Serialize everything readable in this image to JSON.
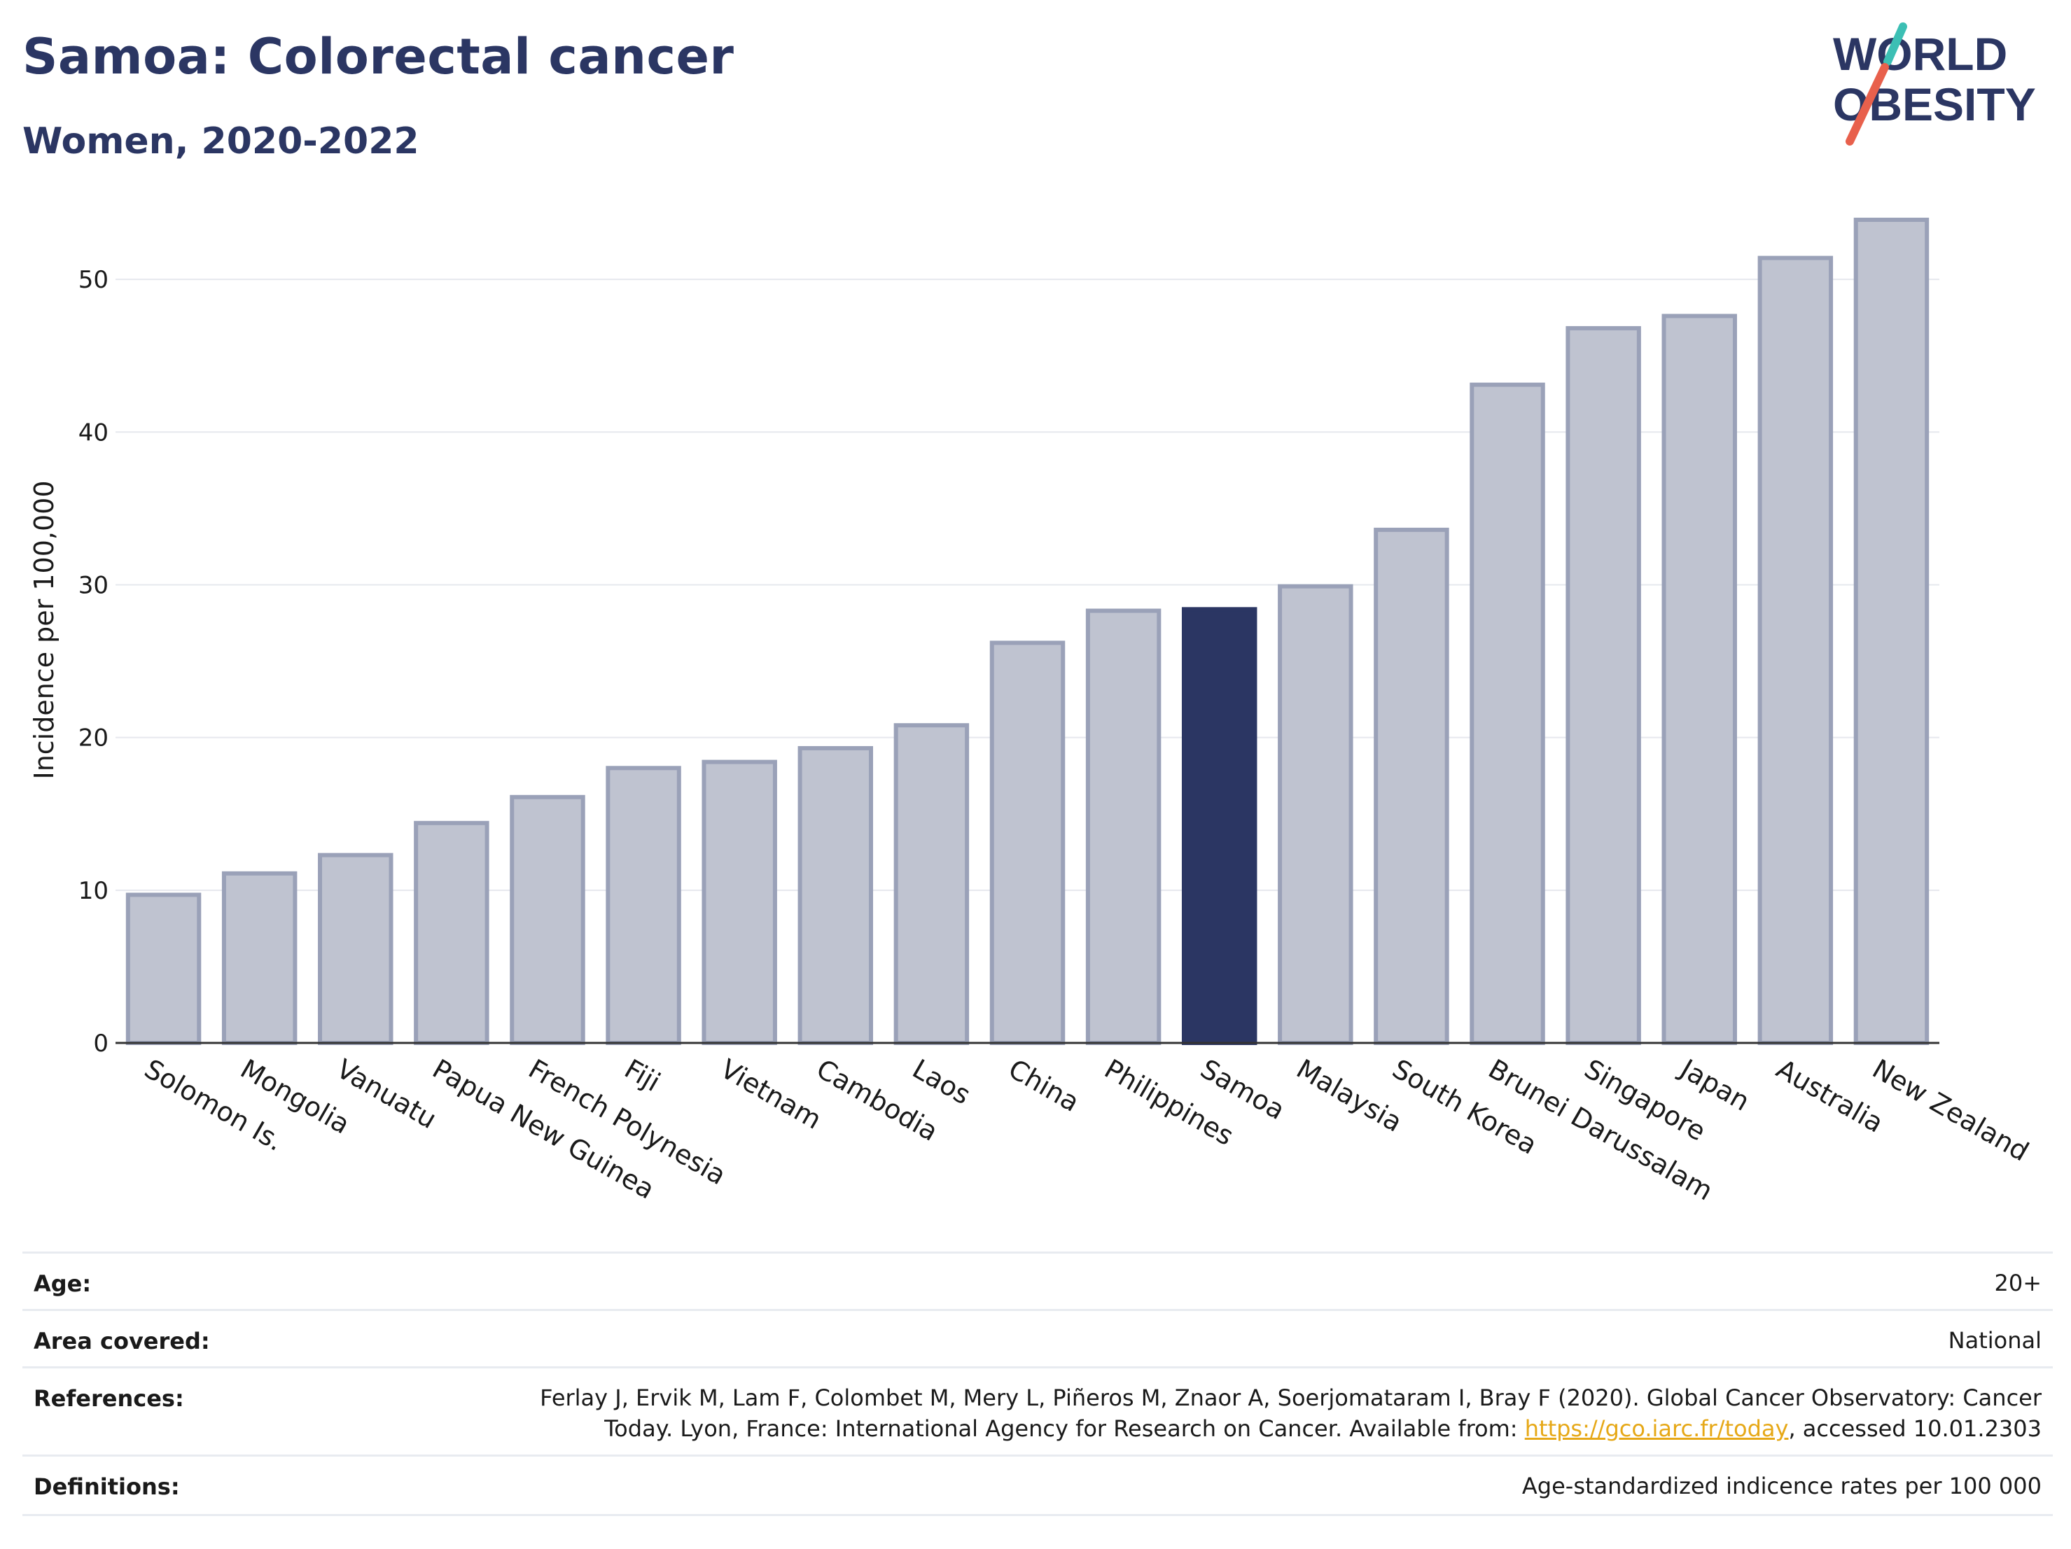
{
  "header": {
    "title": "Samoa: Colorectal cancer",
    "subtitle": "Women, 2020-2022"
  },
  "logo": {
    "line1": "WORLD",
    "line2": "OBESITY",
    "accent_teal": "#3cbfb4",
    "accent_red": "#e8604c"
  },
  "colors": {
    "bar": "#bfc3d0",
    "bar_stroke": "#9aa1b8",
    "highlight": "#2b3663",
    "grid": "#e6e8ee",
    "axis": "#333333"
  },
  "chart_data": {
    "type": "bar",
    "categories": [
      "Solomon Is.",
      "Mongolia",
      "Vanuatu",
      "Papua New Guinea",
      "French Polynesia",
      "Fiji",
      "Vietnam",
      "Cambodia",
      "Laos",
      "China",
      "Philippines",
      "Samoa",
      "Malaysia",
      "South Korea",
      "Brunei Darussalam",
      "Singapore",
      "Japan",
      "Australia",
      "New Zealand"
    ],
    "values": [
      9.7,
      11.1,
      12.3,
      14.4,
      16.1,
      18.0,
      18.4,
      19.3,
      20.8,
      26.2,
      28.3,
      28.4,
      29.9,
      33.6,
      43.1,
      46.8,
      47.6,
      51.4,
      53.9
    ],
    "highlight": "Samoa",
    "ylabel": "Incidence per 100,000",
    "ylim": [
      0,
      55
    ],
    "yticks": [
      0,
      10,
      20,
      30,
      40,
      50
    ],
    "grid": true
  },
  "metadata": {
    "age": {
      "label": "Age:",
      "value": "20+"
    },
    "area": {
      "label": "Area covered:",
      "value": "National"
    },
    "references": {
      "label": "References:",
      "line1": "Ferlay J, Ervik M, Lam F, Colombet M, Mery L, Piñeros M, Znaor A, Soerjomataram I, Bray F (2020). Global Cancer Observatory: Cancer",
      "line2_pre": "Today. Lyon, France: International Agency for Research on Cancer. Available from: ",
      "link": "https://gco.iarc.fr/today",
      "line2_post": ", accessed 10.01.2303"
    },
    "definitions": {
      "label": "Definitions:",
      "value": "Age-standardized indicence rates per 100 000"
    }
  }
}
